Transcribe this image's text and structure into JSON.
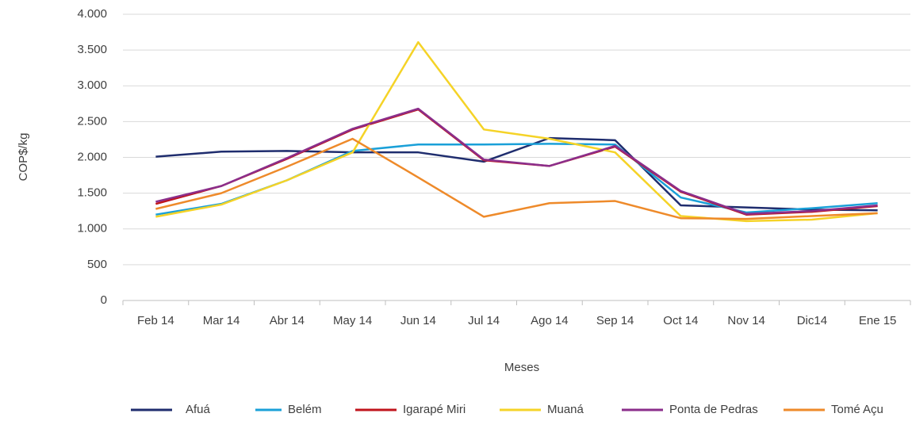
{
  "chart_data": {
    "type": "line",
    "x_label": "Meses",
    "y_label": "COP$/kg",
    "categories": [
      "Feb 14",
      "Mar 14",
      "Abr 14",
      "May 14",
      "Jun 14",
      "Jul 14",
      "Ago 14",
      "Sep 14",
      "Oct 14",
      "Nov 14",
      "Dic14",
      "Ene 15"
    ],
    "series": [
      {
        "name": "Afuá",
        "color": "#1f2d6e",
        "values": [
          2010,
          2080,
          2090,
          2070,
          2070,
          1940,
          2270,
          2240,
          1330,
          1300,
          1270,
          1260
        ]
      },
      {
        "name": "Belém",
        "color": "#1aa0d8",
        "values": [
          1200,
          1350,
          1680,
          2090,
          2180,
          2180,
          2190,
          2180,
          1440,
          1230,
          1290,
          1360
        ]
      },
      {
        "name": "Igarapé Miri",
        "color": "#c0141c",
        "values": [
          1350,
          1600,
          1980,
          2390,
          2670,
          1960,
          1880,
          2150,
          1520,
          1200,
          1240,
          1320
        ]
      },
      {
        "name": "Muaná",
        "color": "#f5d327",
        "values": [
          1170,
          1340,
          1680,
          2070,
          3610,
          2390,
          2260,
          2070,
          1180,
          1110,
          1130,
          1220
        ]
      },
      {
        "name": "Ponta de Pedras",
        "color": "#8b2e8b",
        "values": [
          1380,
          1600,
          1990,
          2400,
          2680,
          1970,
          1880,
          2160,
          1530,
          1210,
          1250,
          1330
        ]
      },
      {
        "name": "Tomé Açu",
        "color": "#ee8a2a",
        "values": [
          1280,
          1500,
          1870,
          2260,
          1720,
          1170,
          1360,
          1390,
          1150,
          1140,
          1180,
          1220
        ]
      }
    ],
    "ylim": [
      0,
      4000
    ],
    "yticks": [
      0,
      500,
      {
        "value": 1000,
        "label": "1.000"
      },
      {
        "value": 1500,
        "label": "1.500"
      },
      {
        "value": 2000,
        "label": "2.000"
      },
      {
        "value": 2500,
        "label": "2.500"
      },
      {
        "value": 3000,
        "label": "3.000"
      },
      {
        "value": 3500,
        "label": "3.500"
      },
      {
        "value": 4000,
        "label": "4.000"
      }
    ],
    "grid": true,
    "legend": "bottom"
  }
}
